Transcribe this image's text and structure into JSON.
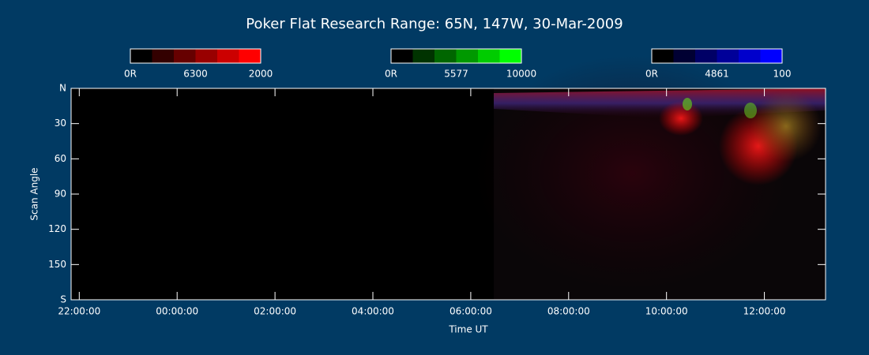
{
  "chart_data": {
    "type": "keogram",
    "title": "Poker Flat Research Range: 65N, 147W, 30-Mar-2009",
    "xlabel": "Time UT",
    "ylabel": "Scan Angle",
    "xlim": [
      "21:50:00",
      "13:15:00"
    ],
    "xticks": [
      "22:00:00",
      "00:00:00",
      "02:00:00",
      "04:00:00",
      "06:00:00",
      "08:00:00",
      "10:00:00",
      "12:00:00"
    ],
    "ylim": [
      0,
      180
    ],
    "yticks": [
      {
        "value": 0,
        "label": "N"
      },
      30,
      60,
      90,
      120,
      150,
      {
        "value": 180,
        "label": "S"
      }
    ],
    "colorbars": [
      {
        "labels": [
          "0R",
          "6300",
          "2000"
        ],
        "colors": [
          "#000000",
          "#330000",
          "#660000",
          "#990000",
          "#cc0000",
          "#ff0000"
        ]
      },
      {
        "labels": [
          "0R",
          "5577",
          "10000"
        ],
        "colors": [
          "#000000",
          "#003300",
          "#006600",
          "#009900",
          "#00cc00",
          "#00ff00"
        ]
      },
      {
        "labels": [
          "0R",
          "4861",
          "100"
        ],
        "colors": [
          "#000000",
          "#000033",
          "#000066",
          "#000099",
          "#0000cc",
          "#0000ff"
        ]
      }
    ]
  }
}
